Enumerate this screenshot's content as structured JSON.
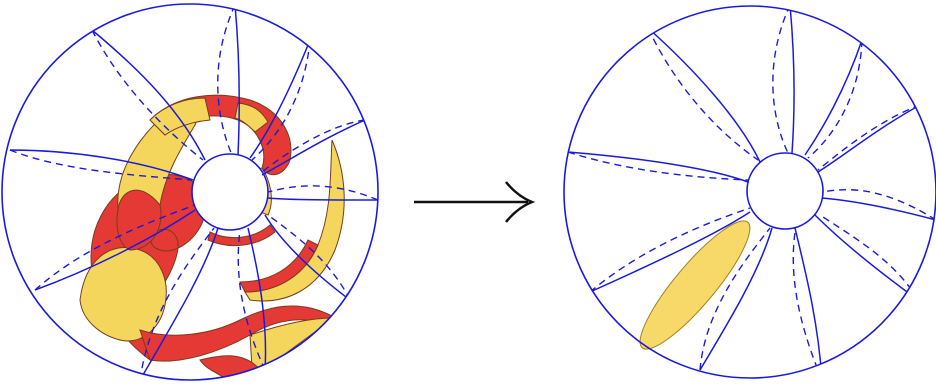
{
  "figure": {
    "left_panel": {
      "description_label": "",
      "shape_colors": {
        "primary": "#e53935",
        "secondary": "#f3d65b",
        "outline": "#7a3b1d"
      }
    },
    "right_panel": {
      "shape_colors": {
        "fill": "#f7d969",
        "outline": "#a77e1b"
      }
    },
    "arrow": {
      "color": "#111111"
    },
    "sphere": {
      "stroke": "#1a1adf"
    }
  }
}
